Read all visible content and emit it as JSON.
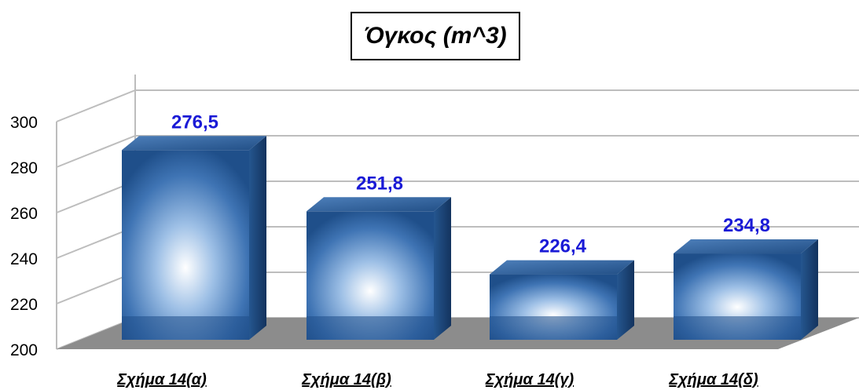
{
  "chart_data": {
    "type": "bar",
    "title": "Όγκος (m^3)",
    "categories": [
      "Σχήμα 14(α)",
      "Σχήμα 14(β)",
      "Σχήμα 14(γ)",
      "Σχήμα 14(δ)"
    ],
    "values": [
      276.5,
      251.8,
      226.4,
      234.8
    ],
    "value_labels": [
      "276,5",
      "251,8",
      "226,4",
      "234,8"
    ],
    "ylim": [
      200,
      300
    ],
    "yticks": [
      "200",
      "220",
      "240",
      "260",
      "280",
      "300"
    ],
    "grid": true,
    "legend": "none",
    "style": "3d-cylinder-box",
    "colors": {
      "bar_dark": "#1f4f8a",
      "bar_light": "#ffffff",
      "label": "#1a1ad6",
      "floor": "#8c8c8c",
      "grid": "#bdbdbd"
    }
  }
}
